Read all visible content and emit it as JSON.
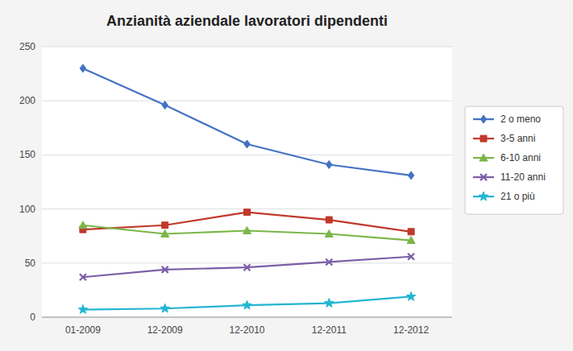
{
  "chart_data": {
    "type": "line",
    "title": "Anzianità aziendale lavoratori dipendenti",
    "categories": [
      "01-2009",
      "12-2009",
      "12-2010",
      "12-2011",
      "12-2012"
    ],
    "series": [
      {
        "name": "2 o meno",
        "color": "#4472c4",
        "marker": "diamond",
        "values": [
          230,
          196,
          160,
          141,
          131
        ]
      },
      {
        "name": "3-5 anni",
        "color": "#c0392b",
        "marker": "square",
        "values": [
          81,
          85,
          97,
          90,
          79
        ]
      },
      {
        "name": "6-10 anni",
        "color": "#7ab648",
        "marker": "triangle",
        "values": [
          85,
          77,
          80,
          77,
          71
        ]
      },
      {
        "name": "11-20 anni",
        "color": "#7b5ea7",
        "marker": "x",
        "values": [
          37,
          44,
          46,
          51,
          56
        ]
      },
      {
        "name": "21 o più",
        "color": "#23b5d3",
        "marker": "star",
        "values": [
          7,
          8,
          11,
          13,
          19
        ]
      }
    ],
    "ylim": [
      0,
      250
    ],
    "yticks": [
      0,
      50,
      100,
      150,
      200,
      250
    ],
    "grid": true,
    "legend": "right"
  }
}
